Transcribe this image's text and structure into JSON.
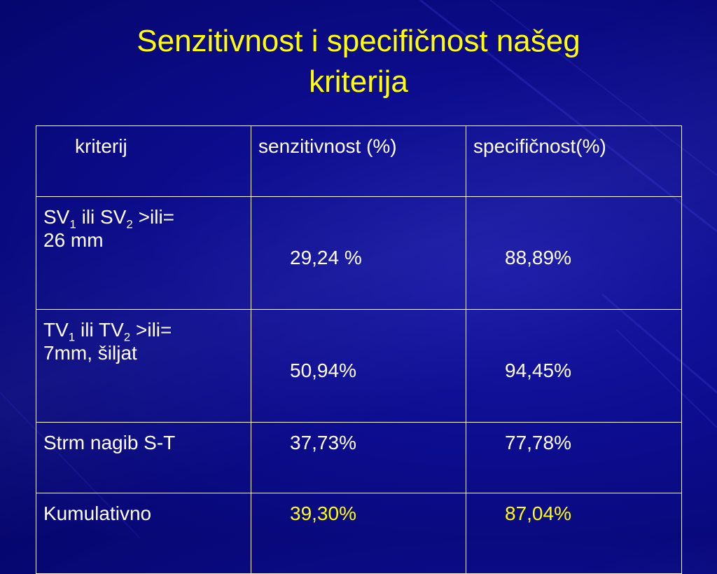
{
  "slide": {
    "title_line1": "Senzitivnost i specifičnost našeg",
    "title_line2": "kriterija",
    "colors": {
      "background": "#0c0c8a",
      "title": "#ffff00",
      "text": "#ffffff",
      "highlight": "#ffff00",
      "border": "#ffffff"
    }
  },
  "table": {
    "headers": [
      "kriterij",
      "senzitivnost (%)",
      "specifičnost(%)"
    ],
    "rows": [
      {
        "k_main1": "SV",
        "k_sub1": "1",
        "k_mid": " ili SV",
        "k_sub2": "2",
        "k_tail": " >ili=",
        "k_line2": "26 mm",
        "sens": "29,24 %",
        "spec": "88,89%"
      },
      {
        "k_main1": "TV",
        "k_sub1": "1",
        "k_mid": " ili TV",
        "k_sub2": "2",
        "k_tail": " >ili=",
        "k_line2": "7mm, šiljat",
        "sens": "50,94%",
        "spec": "94,45%"
      },
      {
        "k_text": "Strm nagib S-T",
        "sens": "37,73%",
        "spec": "77,78%"
      },
      {
        "k_text": "Kumulativno",
        "sens": "39,30%",
        "spec": "87,04%"
      }
    ]
  }
}
